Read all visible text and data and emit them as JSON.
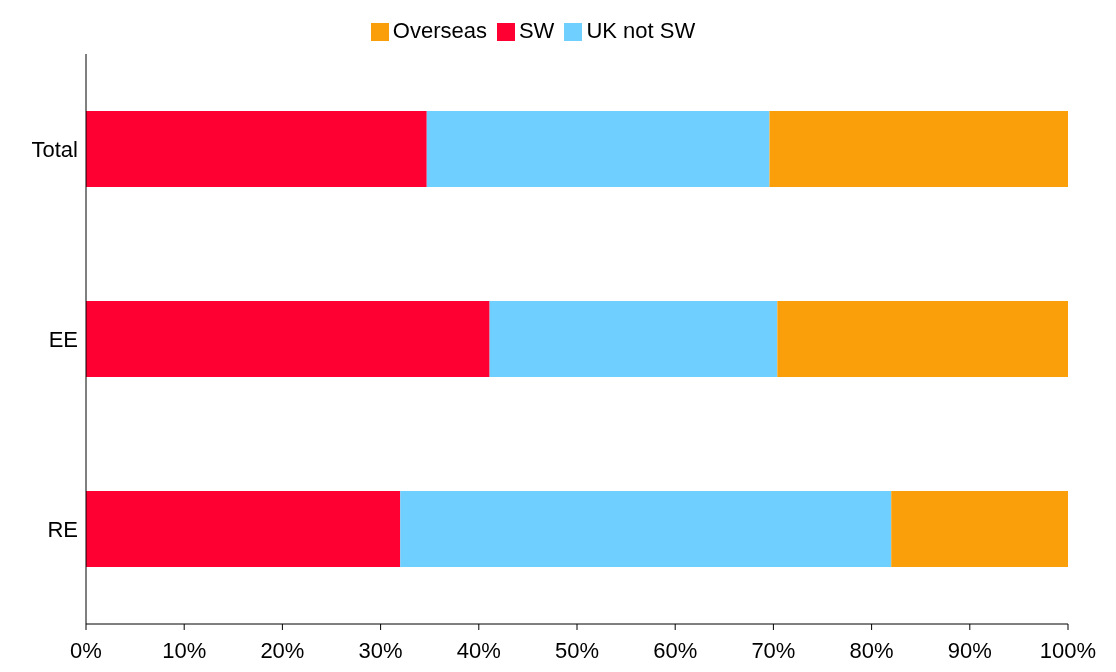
{
  "chart_data": {
    "type": "bar",
    "orientation": "horizontal",
    "stacked": true,
    "categories": [
      "Total",
      "EE",
      "RE"
    ],
    "series": [
      {
        "name": "SW",
        "color": "#ff0033",
        "values": [
          34.7,
          41.1,
          32.0
        ]
      },
      {
        "name": "UK not SW",
        "color": "#6fcfff",
        "values": [
          34.9,
          29.3,
          50.0
        ]
      },
      {
        "name": "Overseas",
        "color": "#fa9e0a",
        "values": [
          30.4,
          29.6,
          18.0
        ]
      }
    ],
    "xlim": [
      0,
      100
    ],
    "xticks": [
      {
        "value": 0,
        "label": "0%"
      },
      {
        "value": 10,
        "label": "10%"
      },
      {
        "value": 20,
        "label": "20%"
      },
      {
        "value": 30,
        "label": "30%"
      },
      {
        "value": 40,
        "label": "40%"
      },
      {
        "value": 50,
        "label": "50%"
      },
      {
        "value": 60,
        "label": "60%"
      },
      {
        "value": 70,
        "label": "70%"
      },
      {
        "value": 80,
        "label": "80%"
      },
      {
        "value": 90,
        "label": "90%"
      },
      {
        "value": 100,
        "label": "100%"
      }
    ],
    "grid": false,
    "legend": "top"
  }
}
